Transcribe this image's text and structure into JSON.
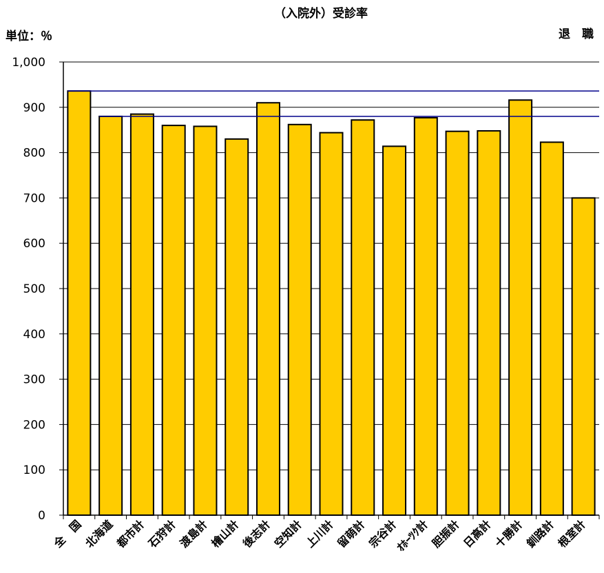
{
  "chart_data": {
    "type": "bar",
    "title": "（入院外）受診率",
    "unit_label": "単位：％",
    "category_label": "退　職",
    "categories": [
      "全　国",
      "北海道",
      "都市計",
      "石狩計",
      "渡島計",
      "檜山計",
      "後志計",
      "空知計",
      "上川計",
      "留萌計",
      "宗谷計",
      "ｵﾎｰﾂｸ計",
      "胆振計",
      "日高計",
      "十勝計",
      "釧路計",
      "根室計"
    ],
    "values": [
      936,
      880,
      885,
      860,
      858,
      830,
      910,
      862,
      844,
      872,
      814,
      877,
      847,
      848,
      916,
      823,
      700
    ],
    "ylim": [
      0,
      1000
    ],
    "yticks": [
      0,
      100,
      200,
      300,
      400,
      500,
      600,
      700,
      800,
      900,
      1000
    ],
    "ytick_labels": [
      "0",
      "100",
      "200",
      "300",
      "400",
      "500",
      "600",
      "700",
      "800",
      "900",
      "1,000"
    ],
    "reference_lines": [
      {
        "value": 936,
        "from_category": 0
      },
      {
        "value": 880,
        "from_category": 1
      }
    ],
    "grid": true,
    "bar_color": "#FFCC00",
    "bar_edge_color": "#000000",
    "reference_line_color": "#00008B",
    "grid_color": "#000000"
  }
}
